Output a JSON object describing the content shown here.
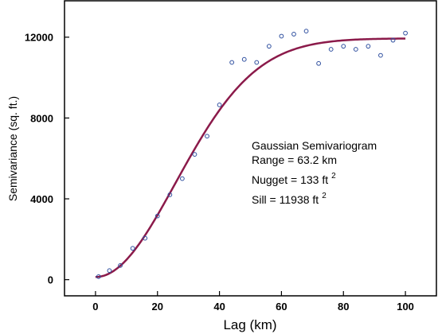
{
  "chart_data": {
    "type": "scatter",
    "xlabel": "Lag (km)",
    "ylabel": "Semivariance (sq. ft.)",
    "xlim": [
      -10,
      110
    ],
    "ylim": [
      -800,
      13800
    ],
    "x_ticks": [
      0,
      20,
      40,
      60,
      80,
      100
    ],
    "x_tick_labels": [
      "0",
      "20",
      "40",
      "60",
      "80",
      "100"
    ],
    "y_ticks": [
      0,
      4000,
      8000,
      12000
    ],
    "y_tick_labels": [
      "0",
      "4000",
      "8000",
      "12000"
    ],
    "grid": false,
    "legend": "none",
    "annotations": {
      "title": "Gaussian Semivariogram",
      "range": "Range = 63.2 km",
      "nugget_text": "Nugget = 133 ft",
      "nugget_sup": "2",
      "sill_text": "Sill = 11938 ft",
      "sill_sup": "2"
    },
    "model": {
      "name": "Gaussian Semivariogram",
      "nugget": 133,
      "sill": 11938,
      "range_km": 63.2,
      "x_min": 0,
      "x_max": 100,
      "color": "#8b1a4a"
    },
    "series": [
      {
        "marker": "open-circle",
        "color": "#2f4f9f",
        "x": [
          1,
          4.5,
          8,
          12,
          16,
          20,
          24,
          28,
          32,
          36,
          40,
          44,
          48,
          52,
          56,
          60,
          64,
          68,
          72,
          76,
          80,
          84,
          88,
          92,
          96,
          100
        ],
        "y": [
          150,
          450,
          700,
          1550,
          2050,
          3150,
          4200,
          5000,
          6200,
          7100,
          8650,
          10750,
          10900,
          10750,
          11550,
          12050,
          12150,
          12300,
          10700,
          11400,
          11550,
          11400,
          11550,
          11100,
          11850,
          12200
        ]
      }
    ]
  }
}
